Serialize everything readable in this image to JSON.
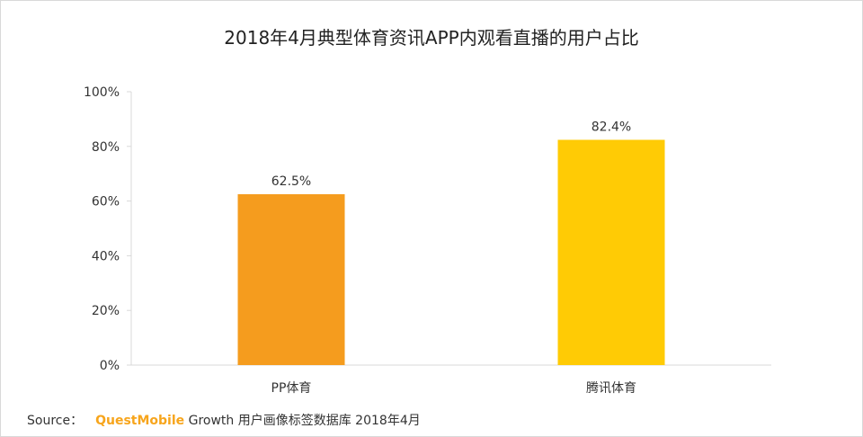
{
  "colors": {
    "bar1": "#f59c1e",
    "bar2": "#ffcb05",
    "axis": "#d9d9d9",
    "text": "#333333",
    "brand": "#f7a51c"
  },
  "chart_data": {
    "type": "bar",
    "title": "2018年4月典型体育资讯APP内观看直播的用户占比",
    "categories": [
      "PP体育",
      "腾讯体育"
    ],
    "values": [
      62.5,
      82.4
    ],
    "data_labels": [
      "62.5%",
      "82.4%"
    ],
    "ylim": [
      0,
      100
    ],
    "yticks": [
      0,
      20,
      40,
      60,
      80,
      100
    ],
    "ytick_labels": [
      "0%",
      "20%",
      "40%",
      "60%",
      "80%",
      "100%"
    ],
    "xlabel": "",
    "ylabel": "",
    "grid": false,
    "legend": "none"
  },
  "source": {
    "prefix": "Source：",
    "brand": "QuestMobile",
    "text": "Growth 用户画像标签数据库 2018年4月"
  }
}
